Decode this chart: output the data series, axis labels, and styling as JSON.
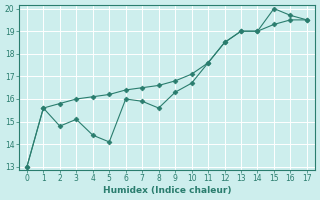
{
  "x": [
    0,
    1,
    2,
    3,
    4,
    5,
    6,
    7,
    8,
    9,
    10,
    11,
    12,
    13,
    14,
    15,
    16,
    17
  ],
  "y_jagged": [
    13,
    15.6,
    14.8,
    15.1,
    14.4,
    14.1,
    16.0,
    15.9,
    15.6,
    16.3,
    16.7,
    17.6,
    18.5,
    19.0,
    19.0,
    20.0,
    19.7,
    19.5
  ],
  "y_smooth": [
    13,
    15.6,
    15.8,
    16.0,
    16.1,
    16.2,
    16.4,
    16.5,
    16.6,
    16.8,
    17.1,
    17.6,
    18.5,
    19.0,
    19.0,
    19.3,
    19.5,
    19.5
  ],
  "line_color": "#2a7d6e",
  "bg_color": "#cdeeed",
  "grid_color": "#b0d8d4",
  "xlabel": "Humidex (Indice chaleur)",
  "ylim": [
    13,
    20
  ],
  "xlim": [
    -0.5,
    17.5
  ],
  "yticks": [
    13,
    14,
    15,
    16,
    17,
    18,
    19,
    20
  ],
  "xticks": [
    0,
    1,
    2,
    3,
    4,
    5,
    6,
    7,
    8,
    9,
    10,
    11,
    12,
    13,
    14,
    15,
    16,
    17
  ]
}
